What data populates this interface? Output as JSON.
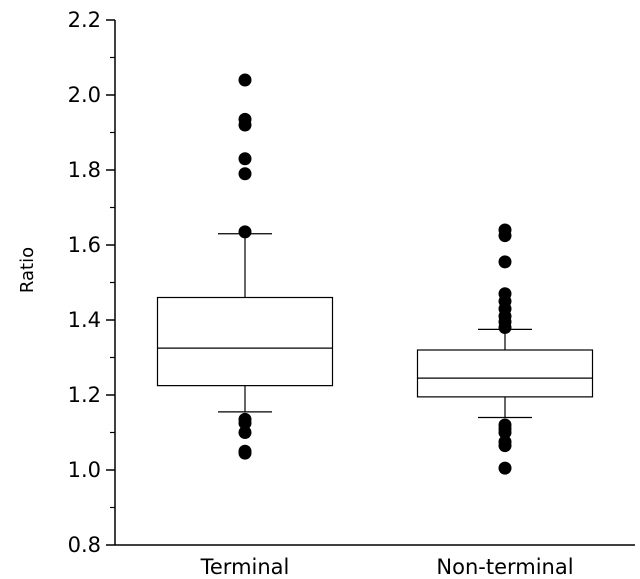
{
  "chart_data": {
    "type": "box",
    "title": "",
    "xlabel": "",
    "ylabel": "Ratio",
    "ylim": [
      0.8,
      2.2
    ],
    "yticks": [
      0.8,
      1.0,
      1.2,
      1.4,
      1.6,
      1.8,
      2.0,
      2.2
    ],
    "ytick_labels": [
      "0.8",
      "1.0",
      "1.2",
      "1.4",
      "1.6",
      "1.8",
      "2.0",
      "2.2"
    ],
    "grid": false,
    "legend": "none",
    "categories": [
      "Terminal",
      "Non-terminal"
    ],
    "boxes": [
      {
        "name": "Terminal",
        "whisker_low": 1.155,
        "q1": 1.225,
        "median": 1.325,
        "q3": 1.46,
        "whisker_high": 1.63,
        "outliers": [
          2.04,
          1.935,
          1.92,
          1.83,
          1.79,
          1.635,
          1.135,
          1.125,
          1.1,
          1.05,
          1.045
        ]
      },
      {
        "name": "Non-terminal",
        "whisker_low": 1.14,
        "q1": 1.195,
        "median": 1.245,
        "q3": 1.32,
        "whisker_high": 1.375,
        "outliers": [
          1.64,
          1.625,
          1.555,
          1.47,
          1.45,
          1.43,
          1.41,
          1.395,
          1.38,
          1.12,
          1.11,
          1.1,
          1.075,
          1.065,
          1.005
        ]
      }
    ]
  }
}
